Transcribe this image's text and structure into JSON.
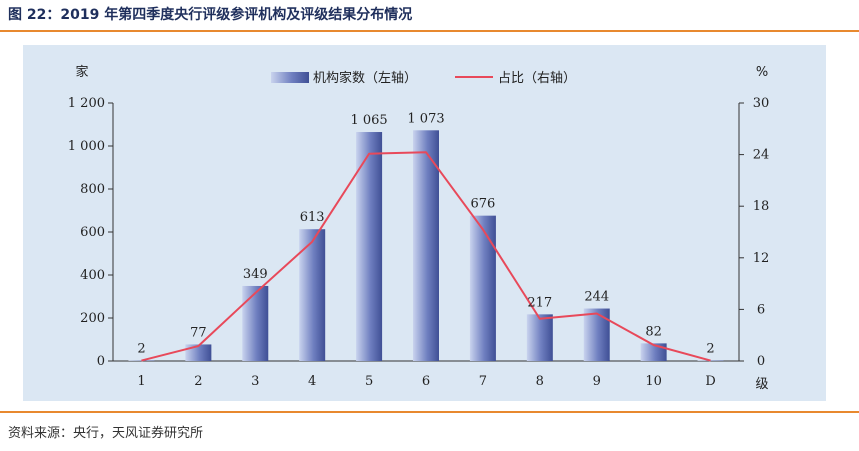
{
  "figure": {
    "title": "图 22：2019 年第四季度央行评级参评机构及评级结果分布情况",
    "source": "资料来源：央行，天风证券研究所"
  },
  "colors": {
    "accent_rule": "#e8892f",
    "panel_bg": "#dbe7f3",
    "bar_light": "#c9d3ee",
    "bar_dark": "#3f4f95",
    "line": "#e8495a",
    "title": "#1f2f5c"
  },
  "chart_data": {
    "type": "bar",
    "categories": [
      "1",
      "2",
      "3",
      "4",
      "5",
      "6",
      "7",
      "8",
      "9",
      "10",
      "D"
    ],
    "x_unit_label": "级",
    "y_left_unit": "家",
    "y_right_unit": "%",
    "ylim_left": [
      0,
      1200
    ],
    "ylim_right": [
      0,
      30
    ],
    "y_left_ticks": [
      "0",
      "200",
      "400",
      "600",
      "800",
      "1 000",
      "1 200"
    ],
    "y_right_ticks": [
      "0",
      "6",
      "12",
      "18",
      "24",
      "30"
    ],
    "legend_position": "top-center",
    "series": [
      {
        "name": "机构家数（左轴）",
        "type": "bar",
        "axis": "left",
        "values": [
          2,
          77,
          349,
          613,
          1065,
          1073,
          676,
          217,
          244,
          82,
          2
        ],
        "data_labels": [
          "2",
          "77",
          "349",
          "613",
          "1 065",
          "1 073",
          "676",
          "217",
          "244",
          "82",
          "2"
        ]
      },
      {
        "name": "占比（右轴）",
        "type": "line",
        "axis": "right",
        "values": [
          0.05,
          1.74,
          7.9,
          13.87,
          24.1,
          24.28,
          15.3,
          4.91,
          5.52,
          1.86,
          0.05
        ]
      }
    ]
  }
}
